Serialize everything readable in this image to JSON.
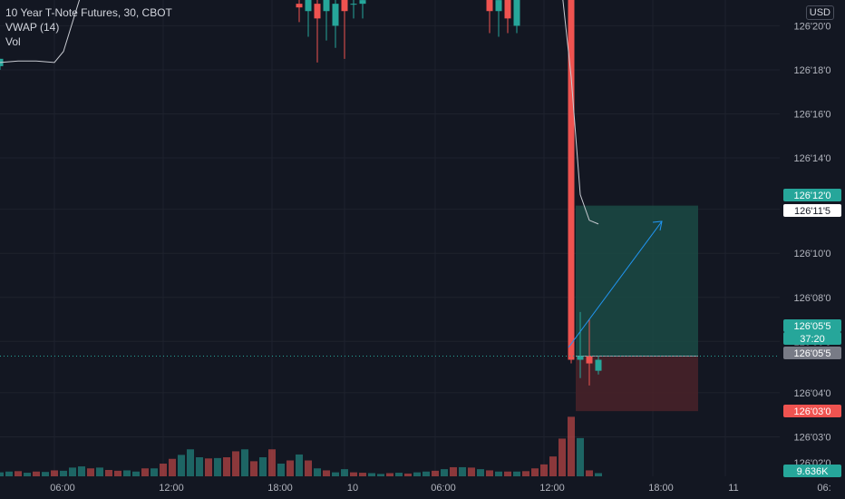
{
  "legend": {
    "title": "10 Year T-Note Futures, 30, CBOT",
    "indicator": "VWAP (14)",
    "volume": "Vol"
  },
  "price_axis": {
    "currency": "USD",
    "ticks": [
      "126'20'0",
      "126'18'0",
      "126'16'0",
      "126'14'0",
      "126'12'0",
      "126'10'0",
      "126'08'0",
      "126'06'0",
      "126'04'0",
      "126'03'0",
      "126'02'0"
    ]
  },
  "time_axis": {
    "ticks": [
      "06:00",
      "12:00",
      "18:00",
      "10",
      "06:00",
      "12:00",
      "18:00",
      "11",
      "06:"
    ]
  },
  "badges": {
    "target": "126'12'0",
    "vwap": "126'11'5",
    "current_price": "126'05'5",
    "countdown": "37:20",
    "entry": "126'05'5",
    "stop": "126'03'0",
    "volume": "9.636K"
  },
  "colors": {
    "background": "#131722",
    "up": "#26a69a",
    "down": "#ef5350",
    "vwap": "#c8cbd2",
    "grid": "#1e222d",
    "profit_zone": "#1b4a44",
    "loss_zone": "#4a2229",
    "arrow": "#2196f3",
    "last_price": "#26a69a"
  },
  "chart_data": {
    "type": "candlestick",
    "title": "10 Year T-Note Futures, 30, CBOT",
    "y_unit": "points and 32nds",
    "ylim": [
      126.0,
      126.65
    ],
    "y_ticks": [
      126.06,
      126.12,
      126.19,
      126.25,
      126.31,
      126.37,
      126.44,
      126.5,
      126.56,
      126.62
    ],
    "x_unit": "30-minute bars",
    "x_ticks": [
      {
        "bar": 6,
        "label": "06:00"
      },
      {
        "bar": 18,
        "label": "12:00"
      },
      {
        "bar": 30,
        "label": "18:00"
      },
      {
        "bar": 38,
        "label": "10"
      },
      {
        "bar": 48,
        "label": "06:00"
      },
      {
        "bar": 60,
        "label": "12:00"
      },
      {
        "bar": 72,
        "label": "18:00"
      },
      {
        "bar": 80,
        "label": "11"
      },
      {
        "bar": 90,
        "label": "06:"
      }
    ],
    "candles": [
      {
        "bar": 0,
        "open": 126.565,
        "high": 126.575,
        "low": 126.56,
        "close": 126.575
      },
      {
        "bar": 33,
        "open": 126.65,
        "high": 126.66,
        "low": 126.625,
        "close": 126.645
      },
      {
        "bar": 34,
        "open": 126.64,
        "high": 126.66,
        "low": 126.605,
        "close": 126.66
      },
      {
        "bar": 35,
        "open": 126.65,
        "high": 126.66,
        "low": 126.57,
        "close": 126.63
      },
      {
        "bar": 36,
        "open": 126.64,
        "high": 126.66,
        "low": 126.6,
        "close": 126.66
      },
      {
        "bar": 37,
        "open": 126.62,
        "high": 126.66,
        "low": 126.59,
        "close": 126.65
      },
      {
        "bar": 38,
        "open": 126.66,
        "high": 126.66,
        "low": 126.575,
        "close": 126.64
      },
      {
        "bar": 39,
        "open": 126.65,
        "high": 126.66,
        "low": 126.63,
        "close": 126.65
      },
      {
        "bar": 40,
        "open": 126.65,
        "high": 126.66,
        "low": 126.63,
        "close": 126.655
      },
      {
        "bar": 54,
        "open": 126.66,
        "high": 126.66,
        "low": 126.61,
        "close": 126.64
      },
      {
        "bar": 55,
        "open": 126.64,
        "high": 126.66,
        "low": 126.605,
        "close": 126.655
      },
      {
        "bar": 56,
        "open": 126.66,
        "high": 126.66,
        "low": 126.61,
        "close": 126.63
      },
      {
        "bar": 57,
        "open": 126.62,
        "high": 126.66,
        "low": 126.61,
        "close": 126.66
      },
      {
        "bar": 63,
        "open": 126.66,
        "high": 126.66,
        "low": 126.16,
        "close": 126.165
      },
      {
        "bar": 64,
        "open": 126.165,
        "high": 126.23,
        "low": 126.14,
        "close": 126.17
      },
      {
        "bar": 65,
        "open": 126.17,
        "high": 126.22,
        "low": 126.13,
        "close": 126.16
      },
      {
        "bar": 66,
        "open": 126.15,
        "high": 126.17,
        "low": 126.145,
        "close": 126.165
      }
    ],
    "vwap": [
      {
        "bar": 0,
        "value": 126.57
      },
      {
        "bar": 2,
        "value": 126.572
      },
      {
        "bar": 4,
        "value": 126.572
      },
      {
        "bar": 6,
        "value": 126.57
      },
      {
        "bar": 7,
        "value": 126.585
      },
      {
        "bar": 9,
        "value": 126.665
      },
      {
        "bar": 46,
        "value": 126.665
      },
      {
        "bar": 47,
        "value": 126.658
      },
      {
        "bar": 48,
        "value": 126.656
      },
      {
        "bar": 49,
        "value": 126.665
      },
      {
        "bar": 62,
        "value": 126.665
      },
      {
        "bar": 63,
        "value": 126.55
      },
      {
        "bar": 64,
        "value": 126.39
      },
      {
        "bar": 65,
        "value": 126.355
      },
      {
        "bar": 66,
        "value": 126.35
      }
    ],
    "volume_max": 16000,
    "volume": [
      1000,
      1200,
      1300,
      900,
      1200,
      1100,
      1500,
      1400,
      2200,
      2500,
      2000,
      2200,
      1600,
      1400,
      1500,
      1200,
      2000,
      2000,
      3200,
      4400,
      5400,
      6800,
      4800,
      4500,
      4600,
      4800,
      6300,
      6800,
      3800,
      4800,
      6800,
      3200,
      4000,
      5500,
      4000,
      2000,
      1500,
      1000,
      1800,
      1000,
      900,
      800,
      600,
      800,
      900,
      700,
      1000,
      1200,
      1400,
      1800,
      2300,
      2300,
      2200,
      1800,
      1500,
      1200,
      1200,
      1200,
      1300,
      2000,
      3000,
      5000,
      9500,
      15000,
      9636,
      1500,
      800
    ],
    "volume_up": [
      true,
      true,
      false,
      true,
      false,
      true,
      false,
      true,
      true,
      true,
      false,
      true,
      false,
      false,
      true,
      true,
      false,
      true,
      false,
      false,
      true,
      true,
      true,
      false,
      true,
      false,
      false,
      true,
      false,
      true,
      false,
      true,
      false,
      true,
      false,
      true,
      false,
      true,
      true,
      false,
      false,
      true,
      true,
      false,
      true,
      false,
      true,
      true,
      false,
      true,
      false,
      true,
      false,
      true,
      false,
      true,
      false,
      true,
      false,
      false,
      false,
      false,
      false,
      false,
      true,
      false,
      true
    ],
    "position": {
      "type": "long",
      "start_bar": 64,
      "end_bar": 77,
      "target": 126.375,
      "entry": 126.17,
      "stop": 126.095
    },
    "last_price": 126.17
  }
}
